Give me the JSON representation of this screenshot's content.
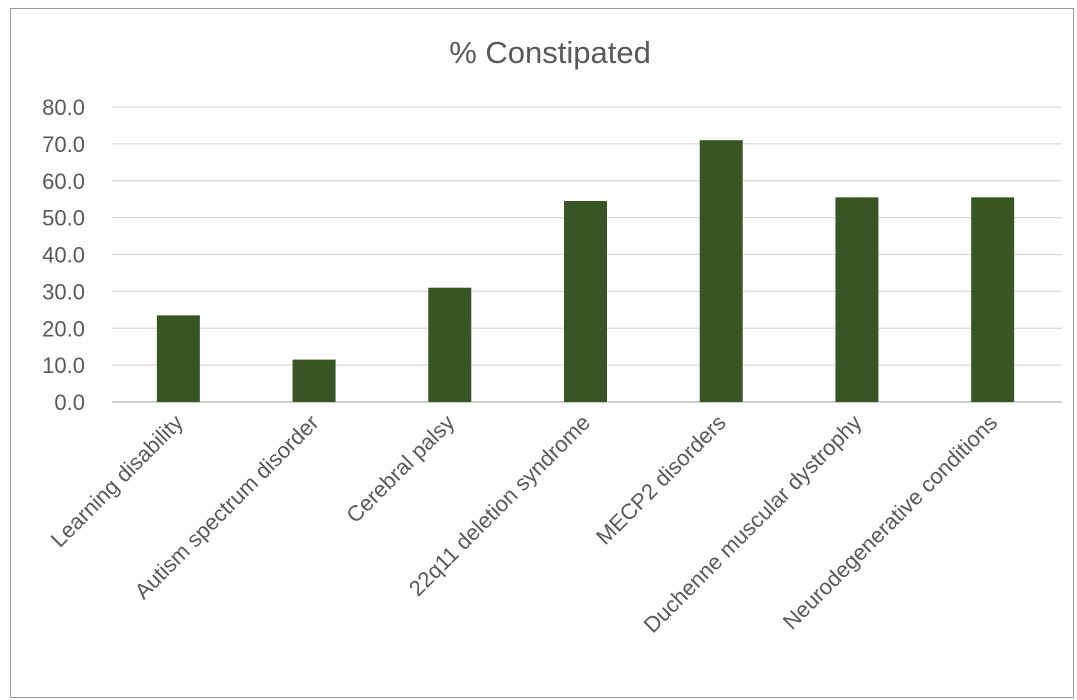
{
  "chart_data": {
    "type": "bar",
    "title": "% Constipated",
    "categories": [
      "Learning disability",
      "Autism spectrum disorder",
      "Cerebral palsy",
      "22q11 deletion syndrome",
      "MECP2 disorders",
      "Duchenne muscular dystrophy",
      "Neurodegenerative conditions"
    ],
    "values": [
      23.5,
      11.5,
      31.0,
      54.5,
      71.0,
      55.5,
      55.5
    ],
    "ylim": [
      0,
      80
    ],
    "yticks": [
      "0.0",
      "10.0",
      "20.0",
      "30.0",
      "40.0",
      "50.0",
      "60.0",
      "70.0",
      "80.0"
    ],
    "xlabel": "",
    "ylabel": "",
    "grid": true,
    "legend": "none",
    "colors": {
      "bar": "#375623"
    }
  }
}
